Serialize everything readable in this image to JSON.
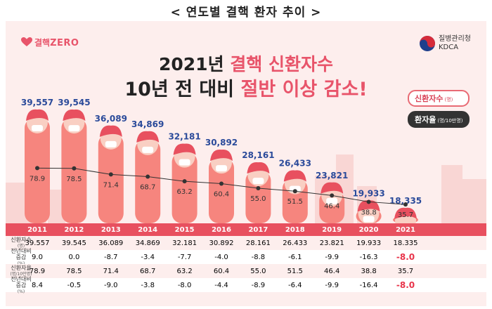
{
  "header": {
    "title": "< 연도별 결핵 환자 추이 >"
  },
  "logo": {
    "prefix": "결핵",
    "zero": "ZERO"
  },
  "kdca": {
    "line1": "질병관리청",
    "line2": "KDCA"
  },
  "headline": {
    "line1_pre": "2021년 ",
    "line1_hl": "결핵 신환자수",
    "line2_pre": "10년 전 대비 ",
    "line2_hl": "절반 이상 감소!"
  },
  "legend": {
    "new_cases": "신환자수",
    "new_cases_unit": "(명)",
    "rate": "환자율",
    "rate_unit": "(명/10만명)"
  },
  "colors": {
    "accent": "#e8505f",
    "bar": "#f6857e",
    "panel": "#fdeeed",
    "line": "#333333"
  },
  "chart_data": {
    "type": "bar",
    "categories": [
      "2011",
      "2012",
      "2013",
      "2014",
      "2015",
      "2016",
      "2017",
      "2018",
      "2019",
      "2020",
      "2021"
    ],
    "series": [
      {
        "name": "신환자수",
        "unit": "(명)",
        "values": [
          39557,
          39545,
          36089,
          34869,
          32181,
          30892,
          28161,
          26433,
          23821,
          19933,
          18335
        ],
        "labels": [
          "39,557",
          "39,545",
          "36,089",
          "34,869",
          "32,181",
          "30,892",
          "28,161",
          "26,433",
          "23,821",
          "19,933",
          "18,335"
        ]
      },
      {
        "name": "환자율",
        "unit": "(명/10만명)",
        "type": "line",
        "values": [
          78.9,
          78.5,
          71.4,
          68.7,
          63.2,
          60.4,
          55.0,
          51.5,
          46.4,
          38.8,
          35.7
        ],
        "labels": [
          "78.9",
          "78.5",
          "71.4",
          "68.7",
          "63.2",
          "60.4",
          "55.0",
          "51.5",
          "46.4",
          "38.8",
          "35.7"
        ]
      }
    ]
  },
  "table": {
    "years": [
      "2011",
      "2012",
      "2013",
      "2014",
      "2015",
      "2016",
      "2017",
      "2018",
      "2019",
      "2020",
      "2021"
    ],
    "rows": [
      {
        "label": "신환자수",
        "unit": "(명)",
        "values": [
          "39.557",
          "39.545",
          "36.089",
          "34.869",
          "32.181",
          "30.892",
          "28.161",
          "26.433",
          "23.821",
          "19.933",
          "18.335"
        ]
      },
      {
        "label": "전년대비",
        "label2": "증감",
        "unit": "(%)",
        "values": [
          "9.0",
          "0.0",
          "-8.7",
          "-3.4",
          "-7.7",
          "-4.0",
          "-8.8",
          "-6.1",
          "-9.9",
          "-16.3",
          "-8.0"
        ]
      },
      {
        "label": "신환자율",
        "unit": "(명/10만명)",
        "values": [
          "78.9",
          "78.5",
          "71.4",
          "68.7",
          "63.2",
          "60.4",
          "55.0",
          "51.5",
          "46.4",
          "38.8",
          "35.7"
        ]
      },
      {
        "label": "전년대비",
        "label2": "증감",
        "unit": "(%)",
        "values": [
          "8.4",
          "-0.5",
          "-9.0",
          "-3.8",
          "-8.0",
          "-4.4",
          "-8.9",
          "-6.4",
          "-9.9",
          "-16.4",
          "-8.0"
        ]
      }
    ]
  }
}
